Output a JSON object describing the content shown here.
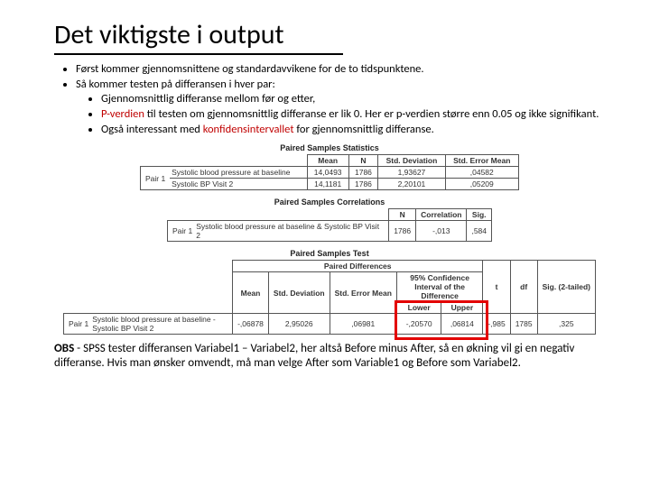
{
  "title": "Det viktigste i output",
  "bullets": {
    "b1": "Først kommer gjennomsnittene og standardavvikene for de to tidspunktene.",
    "b2": "Så kommer testen på differansen i hver par:",
    "b2a": "Gjennomsnittlig differanse mellom før og etter,",
    "b2b_part1": "P-verdien",
    "b2b_part2": " til testen om gjennomsnittlig differanse er lik 0. Her er p-verdien større enn 0.05 og ikke signifikant.",
    "b2c_part1": "Også interessant med ",
    "b2c_part2": "konfidensintervallet",
    "b2c_part3": " for gjennomsnittlig differanse."
  },
  "table1": {
    "title": "Paired Samples Statistics",
    "headers": {
      "mean": "Mean",
      "n": "N",
      "sd": "Std. Deviation",
      "sem": "Std. Error Mean"
    },
    "pair_label": "Pair 1",
    "rows": [
      {
        "label": "Systolic blood pressure at baseline",
        "mean": "14,0493",
        "n": "1786",
        "sd": "1,93627",
        "sem": ",04582"
      },
      {
        "label": "Systolic BP Visit 2",
        "mean": "14,1181",
        "n": "1786",
        "sd": "2,20101",
        "sem": ",05209"
      }
    ]
  },
  "table2": {
    "title": "Paired Samples Correlations",
    "headers": {
      "n": "N",
      "corr": "Correlation",
      "sig": "Sig."
    },
    "pair_label": "Pair 1",
    "row_label": "Systolic blood pressure at baseline & Systolic BP Visit 2",
    "n": "1786",
    "corr": "-,013",
    "sig": ",584"
  },
  "table3": {
    "title": "Paired Samples Test",
    "group_header": "Paired Differences",
    "ci_header": "95% Confidence Interval of the Difference",
    "headers": {
      "mean": "Mean",
      "sd": "Std. Deviation",
      "sem": "Std. Error Mean",
      "lower": "Lower",
      "upper": "Upper",
      "t": "t",
      "df": "df",
      "sig": "Sig. (2-tailed)"
    },
    "pair_label": "Pair 1",
    "row_label": "Systolic blood pressure at baseline - Systolic BP Visit 2",
    "mean": "-,06878",
    "sd": "2,95026",
    "sem": ",06981",
    "lower": "-,20570",
    "upper": ",06814",
    "t": "-,985",
    "df": "1785",
    "sig": ",325"
  },
  "obs": {
    "prefix": "OBS",
    "text": " - SPSS tester differansen Variabel1 – Variabel2, her altså Before minus After, så en økning vil gi en negativ differanse. Hvis man ønsker omvendt, må man velge After som Variable1 og Before som Variabel2."
  },
  "style": {
    "highlight_color": "#e30000",
    "accent_color": "#c00000"
  }
}
